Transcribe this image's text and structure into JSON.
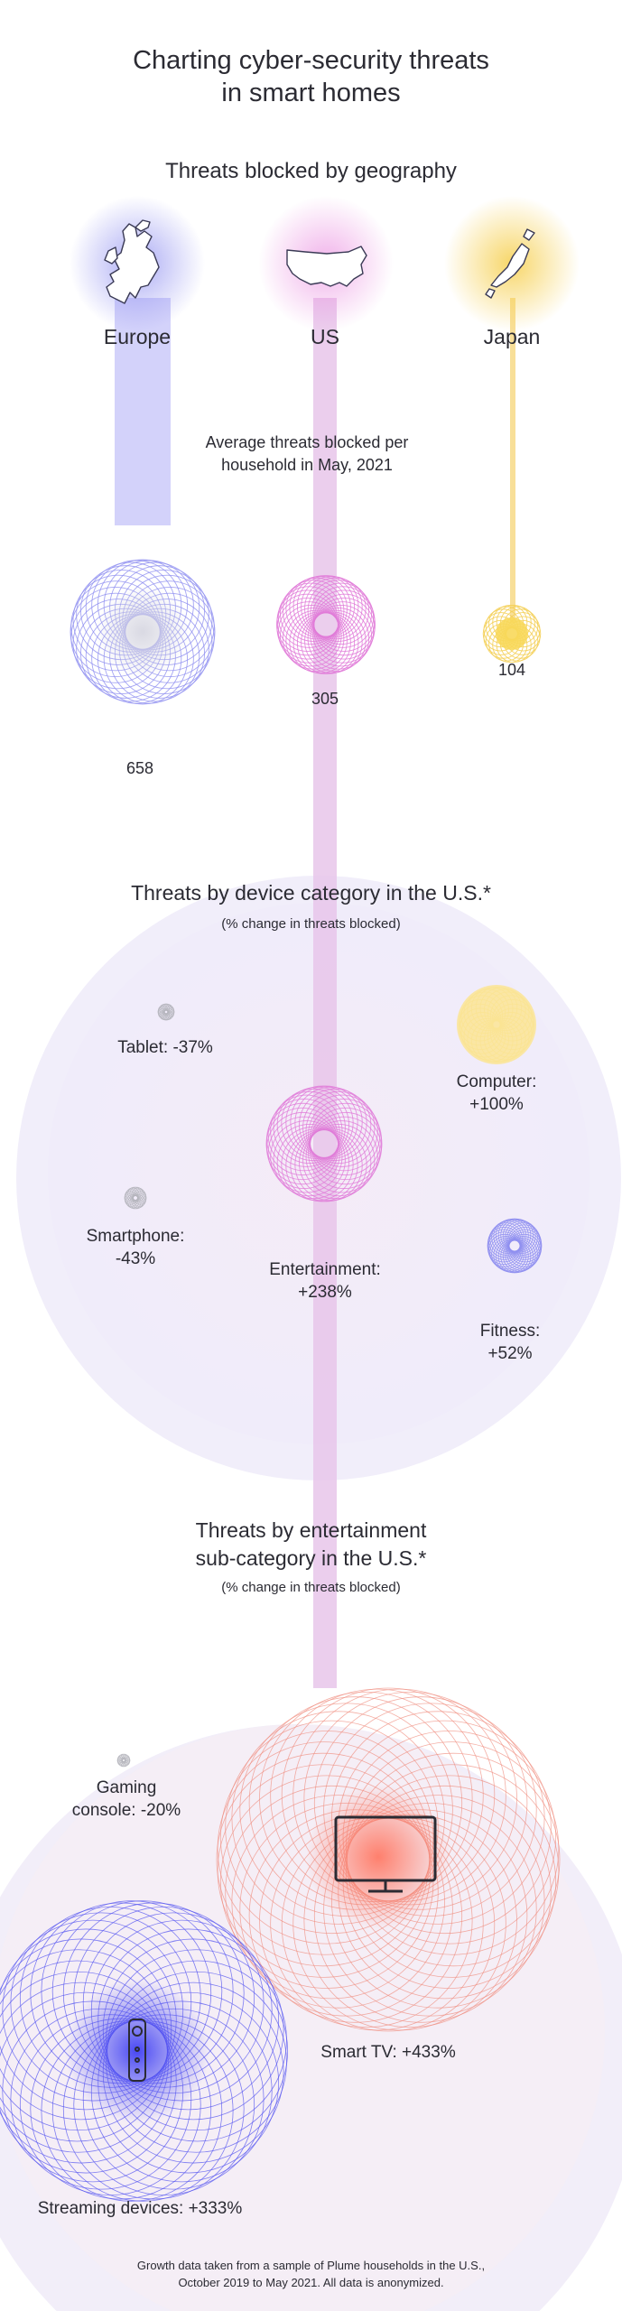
{
  "title": [
    "Charting cyber-security threats",
    "in smart homes"
  ],
  "geography": {
    "heading": "Threats blocked by geography",
    "note": [
      "Average threats blocked per",
      "household in May, 2021"
    ],
    "regions": [
      "Europe",
      "US",
      "Japan"
    ]
  },
  "device": {
    "heading": "Threats by device category in the U.S.*",
    "sub": "(% change in threats blocked)",
    "labels": {
      "tablet": "Tablet: -37%",
      "computer": [
        "Computer:",
        "+100%"
      ],
      "smartphone": [
        "Smartphone:",
        "-43%"
      ],
      "entertainment": [
        "Entertainment:",
        "+238%"
      ],
      "fitness": [
        "Fitness:",
        "+52%"
      ]
    }
  },
  "entertainment": {
    "heading": [
      "Threats by entertainment",
      "sub-category in the U.S.*"
    ],
    "sub": "(% change in threats blocked)",
    "labels": {
      "gaming": [
        "Gaming",
        "console: -20%"
      ],
      "smarttv": "Smart TV: +433%",
      "streaming": "Streaming devices: +333%"
    }
  },
  "footnote": [
    "Growth data taken from a sample of Plume households in the U.S.,",
    "October 2019 to May 2021. All data is anonymized."
  ],
  "colors": {
    "europe": "#8f8ff0",
    "us": "#e07ad8",
    "japan": "#f4cf55",
    "neutral": "#b5b5bd",
    "smarttv": "#f08b7d",
    "streaming": "#5656f0"
  },
  "chart_data": [
    {
      "type": "bubble",
      "title": "Threats blocked by geography",
      "subtitle": "Average threats blocked per household in May, 2021",
      "categories": [
        "Europe",
        "US",
        "Japan"
      ],
      "values": [
        658,
        305,
        104
      ],
      "value_labels": [
        "658",
        "305",
        "104"
      ]
    },
    {
      "type": "bubble",
      "title": "Threats by device category in the U.S.*",
      "subtitle": "(% change in threats blocked)",
      "categories": [
        "Tablet",
        "Computer",
        "Smartphone",
        "Entertainment",
        "Fitness"
      ],
      "values": [
        -37,
        100,
        -43,
        238,
        52
      ]
    },
    {
      "type": "bubble",
      "title": "Threats by entertainment sub-category in the U.S.*",
      "subtitle": "(% change in threats blocked)",
      "categories": [
        "Gaming console",
        "Smart TV",
        "Streaming devices"
      ],
      "values": [
        -20,
        433,
        333
      ]
    }
  ]
}
